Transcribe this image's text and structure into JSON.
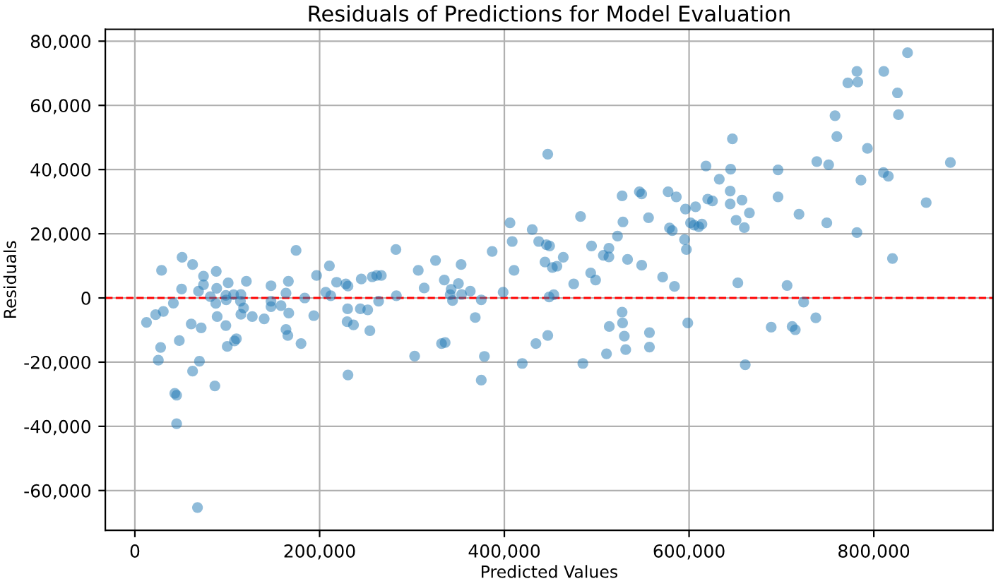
{
  "chart_data": {
    "type": "scatter",
    "title": "Residuals of Predictions for Model Evaluation",
    "xlabel": "Predicted Values",
    "ylabel": "Residuals",
    "series": [
      {
        "color": "#1f77b4",
        "x": [
          12600,
          22500,
          30800,
          28900,
          27900,
          25400,
          41700,
          43200,
          45200,
          45200,
          51100,
          50600,
          48100,
          61000,
          62500,
          62500,
          67800,
          69900,
          71800,
          74300,
          74300,
          68900,
          81700,
          88100,
          88600,
          87600,
          89100,
          86600,
          98500,
          100000,
          101000,
          98500,
          98900,
          106900,
          109900,
          107800,
          114800,
          114300,
          117700,
          114800,
          120700,
          127100,
          140000,
          147400,
          147400,
          147400,
          158200,
          163600,
          166200,
          166600,
          163600,
          165600,
          179900,
          174500,
          183900,
          193700,
          196700,
          206600,
          210600,
          212100,
          218400,
          228400,
          230700,
          230300,
          229800,
          236700,
          230700,
          245100,
          244100,
          252100,
          254400,
          257000,
          261800,
          266800,
          263900,
          282600,
          283100,
          302900,
          306800,
          313200,
          325500,
          335000,
          342400,
          341400,
          343900,
          350300,
          353200,
          353700,
          363100,
          368500,
          375000,
          332000,
          335900,
          378400,
          375000,
          386800,
          398700,
          406100,
          408500,
          410500,
          419400,
          430200,
          437200,
          434200,
          447000,
          445500,
          449000,
          444000,
          452000,
          456900,
          463800,
          448500,
          453500,
          447000,
          475100,
          482500,
          494400,
          493500,
          498800,
          485000,
          507200,
          513200,
          513200,
          522500,
          527500,
          528400,
          533400,
          548700,
          546200,
          548700,
          556100,
          571400,
          577300,
          586200,
          578800,
          581800,
          584200,
          595100,
          597100,
          596100,
          607000,
          601600,
          605500,
          610500,
          613900,
          618300,
          632700,
          620200,
          625300,
          645000,
          644500,
          644500,
          527500,
          528000,
          513600,
          529900,
          531400,
          510600,
          557100,
          557100,
          598600,
          836500,
          781700,
          810800,
          771900,
          782700,
          825600,
          826700,
          758000,
          760000,
          793100,
          646900,
          738300,
          751100,
          882900,
          696300,
          810400,
          815700,
          786100,
          657300,
          696300,
          665300,
          650900,
          659800,
          719000,
          749100,
          856700,
          781700,
          820200,
          652800,
          706100,
          724000,
          737200,
          688900,
          711600,
          715000,
          660800
        ],
        "values": [
          -7600,
          -5200,
          -4200,
          8600,
          -15400,
          -19400,
          -1600,
          -29700,
          -30300,
          -39200,
          12700,
          2800,
          -13300,
          -8100,
          10400,
          -22800,
          -65300,
          -19700,
          -9300,
          6800,
          4100,
          2100,
          400,
          8300,
          3000,
          -1700,
          -5800,
          -27400,
          -8600,
          -15100,
          4700,
          800,
          -600,
          1000,
          -12700,
          -13400,
          1100,
          -1000,
          -3100,
          -5100,
          5200,
          -5800,
          -6500,
          3800,
          -1000,
          -2700,
          -2400,
          1500,
          5200,
          -4700,
          -9800,
          -11700,
          -14200,
          14800,
          0,
          -5500,
          7000,
          1800,
          10000,
          700,
          4900,
          4400,
          3700,
          -3400,
          -7400,
          -8400,
          -24000,
          5900,
          -3400,
          -3700,
          -10200,
          6600,
          7000,
          7000,
          -1000,
          15100,
          700,
          -18100,
          8600,
          3100,
          11700,
          5600,
          2700,
          1000,
          -800,
          4500,
          10400,
          1100,
          2100,
          -6100,
          -600,
          -14200,
          -13900,
          -18200,
          -25600,
          14500,
          1800,
          23400,
          17600,
          8600,
          -20400,
          21300,
          17600,
          -14200,
          44800,
          16600,
          16200,
          11200,
          9500,
          9900,
          12700,
          300,
          1000,
          -11700,
          4400,
          25400,
          16200,
          7800,
          5600,
          -20400,
          13300,
          12800,
          15500,
          19300,
          31800,
          23700,
          12000,
          10200,
          33100,
          32400,
          25000,
          6500,
          33100,
          31500,
          21800,
          21000,
          3600,
          18200,
          15100,
          27700,
          28400,
          23400,
          22700,
          22200,
          23000,
          41100,
          37000,
          30800,
          30200,
          40100,
          33300,
          29300,
          -4400,
          -7800,
          -8900,
          -11900,
          -16100,
          -17400,
          -10800,
          -15300,
          -7800,
          76400,
          70600,
          70600,
          67000,
          67300,
          63900,
          57100,
          56800,
          50300,
          46600,
          49600,
          42500,
          41500,
          42200,
          39900,
          39100,
          37900,
          36700,
          30500,
          31500,
          26500,
          24200,
          21900,
          26100,
          23400,
          29700,
          20400,
          12300,
          4700,
          3900,
          -1300,
          -6200,
          -9100,
          -8900,
          -9900,
          -20800
        ]
      }
    ],
    "xlim": [
      -32000,
      929000
    ],
    "xticks": [
      {
        "value": 0,
        "label": "0"
      },
      {
        "value": 200000,
        "label": "200,000"
      },
      {
        "value": 400000,
        "label": "400,000"
      },
      {
        "value": 600000,
        "label": "600,000"
      },
      {
        "value": 800000,
        "label": "800,000"
      }
    ],
    "ylim": [
      -72400,
      83700
    ],
    "yticks": [
      {
        "value": -60000,
        "label": "-60,000"
      },
      {
        "value": -40000,
        "label": "-40,000"
      },
      {
        "value": -20000,
        "label": "-20,000"
      },
      {
        "value": 0,
        "label": "0"
      },
      {
        "value": 20000,
        "label": "20,000"
      },
      {
        "value": 40000,
        "label": "40,000"
      },
      {
        "value": 60000,
        "label": "60,000"
      },
      {
        "value": 80000,
        "label": "80,000"
      }
    ],
    "ref_lines": [
      {
        "axis": "y",
        "value": 0,
        "color": "#ff0000",
        "line_style": "dashed"
      }
    ],
    "grid": true,
    "marker": "circle"
  }
}
